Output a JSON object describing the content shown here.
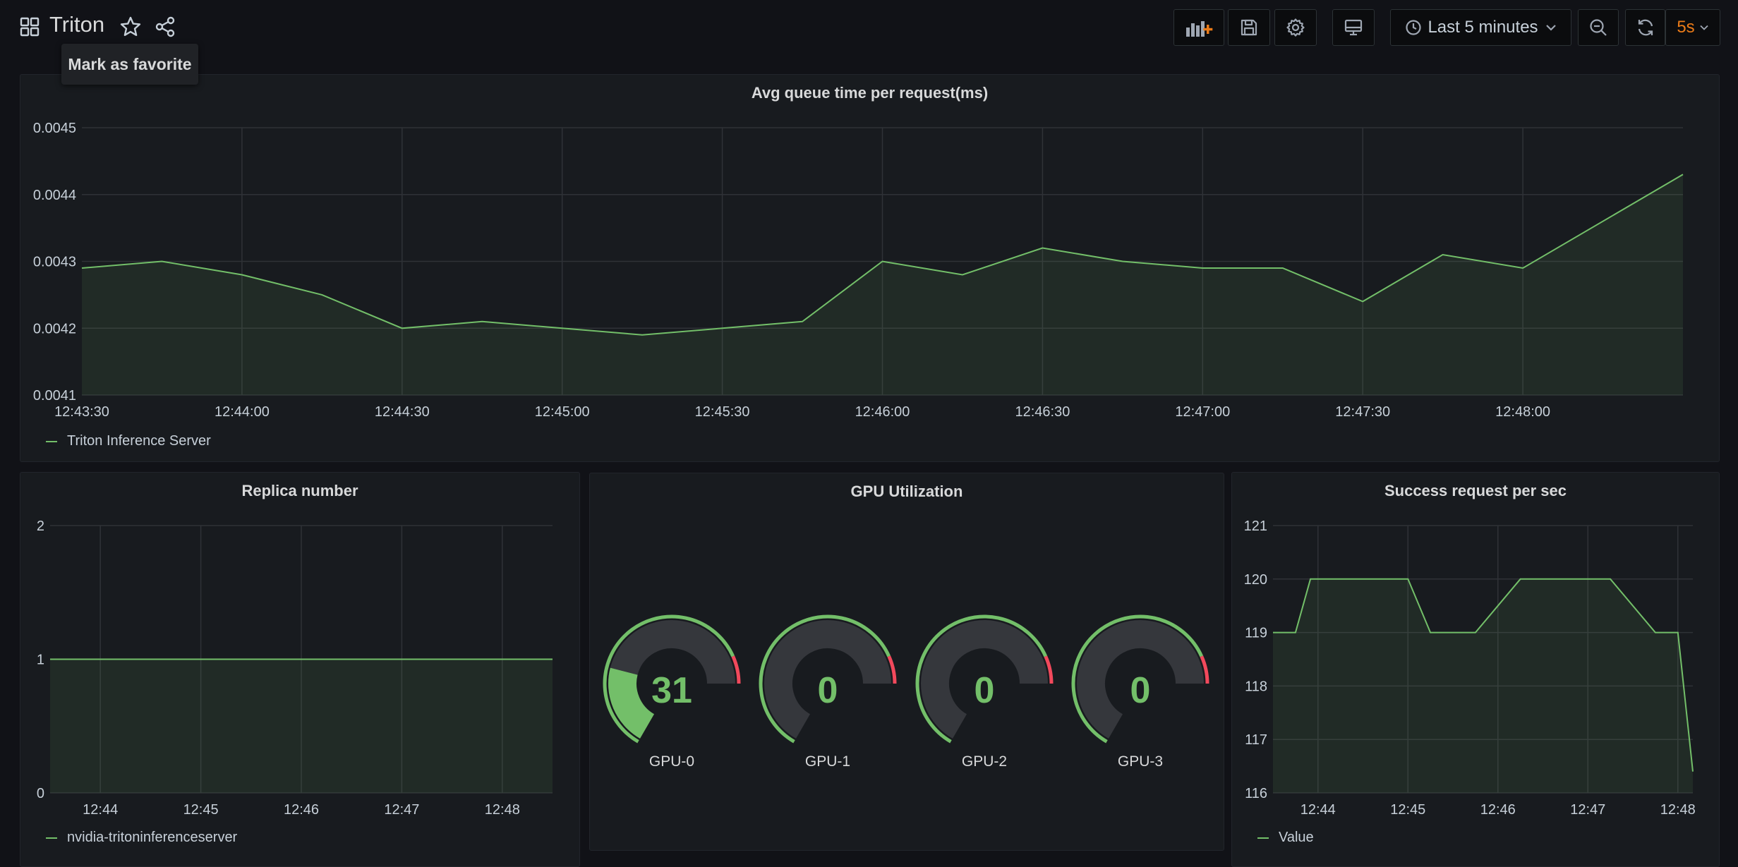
{
  "dashboard": {
    "title": "Triton",
    "favorite_tooltip": "Mark as favorite"
  },
  "toolbar": {
    "time_range": "Last 5 minutes",
    "refresh_interval": "5s"
  },
  "icons": [
    "dashboard-grid-icon",
    "star-icon",
    "share-icon",
    "add-panel-icon",
    "save-icon",
    "gear-icon",
    "tv-icon",
    "clock-icon",
    "chevron-down-icon",
    "zoom-out-icon",
    "refresh-icon"
  ],
  "colors": {
    "series": "#73bf69",
    "threshold_red": "#f2495c",
    "refresh_accent": "#eb7b18",
    "background": "#111217",
    "panel": "#181b1f"
  },
  "panels": {
    "queue": {
      "title": "Avg queue time per request(ms)",
      "legend": "Triton Inference Server",
      "chart_data": {
        "type": "area",
        "x": [
          "12:43:30",
          "12:43:45",
          "12:44:00",
          "12:44:15",
          "12:44:30",
          "12:44:45",
          "12:45:00",
          "12:45:15",
          "12:45:30",
          "12:45:45",
          "12:46:00",
          "12:46:15",
          "12:46:30",
          "12:46:45",
          "12:47:00",
          "12:47:15",
          "12:47:30",
          "12:47:45",
          "12:48:00",
          "12:48:30"
        ],
        "series": [
          {
            "name": "Triton Inference Server",
            "values": [
              0.00429,
              0.0043,
              0.00428,
              0.00425,
              0.0042,
              0.00421,
              0.0042,
              0.00419,
              0.0042,
              0.00421,
              0.0043,
              0.00428,
              0.00432,
              0.0043,
              0.00429,
              0.00429,
              0.00424,
              0.00431,
              0.00429,
              0.00443
            ]
          }
        ],
        "ylim": [
          0.0041,
          0.0045
        ],
        "yticks": [
          "0.0041",
          "0.0042",
          "0.0043",
          "0.0044",
          "0.0045"
        ],
        "xticks": [
          "12:43:30",
          "12:44:00",
          "12:44:30",
          "12:45:00",
          "12:45:30",
          "12:46:00",
          "12:46:30",
          "12:47:00",
          "12:47:30",
          "12:48:00"
        ],
        "grid": true
      }
    },
    "replica": {
      "title": "Replica number",
      "legend": "nvidia-tritoninferenceserver",
      "chart_data": {
        "type": "area",
        "x": [
          "12:43:30",
          "12:48:30"
        ],
        "series": [
          {
            "name": "nvidia-tritoninferenceserver",
            "values": [
              1,
              1
            ]
          }
        ],
        "ylim": [
          0,
          2
        ],
        "yticks": [
          "0",
          "1",
          "2"
        ],
        "xticks": [
          "12:44",
          "12:45",
          "12:46",
          "12:47",
          "12:48"
        ],
        "grid": true
      }
    },
    "gpu": {
      "title": "GPU Utilization",
      "chart_data": {
        "type": "gauge",
        "categories": [
          "GPU-0",
          "GPU-1",
          "GPU-2",
          "GPU-3"
        ],
        "values": [
          31,
          0,
          0,
          0
        ],
        "min": 0,
        "max": 100,
        "threshold_red": 90
      },
      "gauges": [
        {
          "label": "GPU-0",
          "value": "31"
        },
        {
          "label": "GPU-1",
          "value": "0"
        },
        {
          "label": "GPU-2",
          "value": "0"
        },
        {
          "label": "GPU-3",
          "value": "0"
        }
      ]
    },
    "success": {
      "title": "Success request per sec",
      "legend": "Value",
      "chart_data": {
        "type": "area",
        "x": [
          "12:43:30",
          "12:43:45",
          "12:43:55",
          "12:44:15",
          "12:44:45",
          "12:45:00",
          "12:45:15",
          "12:45:25",
          "12:45:45",
          "12:46:15",
          "12:46:45",
          "12:47:00",
          "12:47:15",
          "12:47:45",
          "12:48:00",
          "12:48:10"
        ],
        "series": [
          {
            "name": "Value",
            "values": [
              119,
              119,
              120,
              120,
              120,
              120,
              119,
              119,
              119,
              120,
              120,
              120,
              120,
              119,
              119,
              116.4
            ]
          }
        ],
        "ylim": [
          116,
          121
        ],
        "yticks": [
          "116",
          "117",
          "118",
          "119",
          "120",
          "121"
        ],
        "xticks": [
          "12:44",
          "12:45",
          "12:46",
          "12:47",
          "12:48"
        ],
        "grid": true
      }
    }
  }
}
